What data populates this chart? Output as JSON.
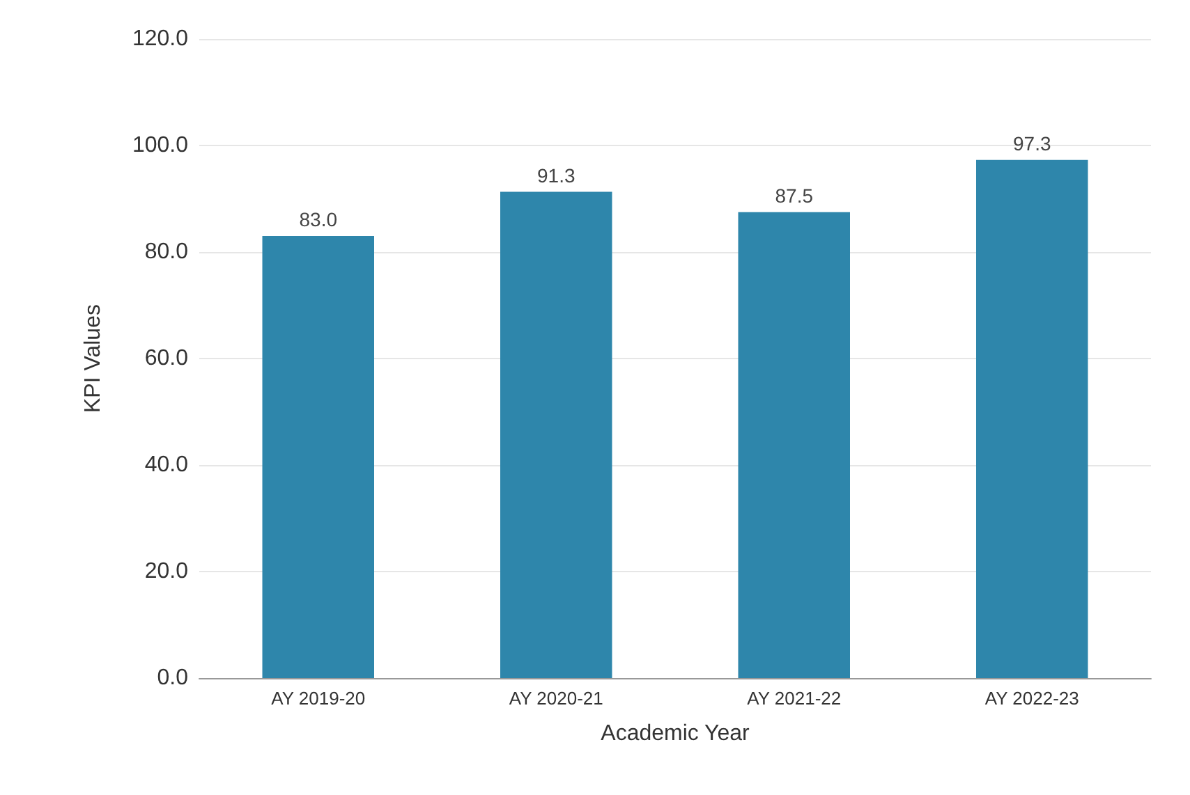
{
  "chart_data": {
    "type": "bar",
    "xlabel": "Academic Year",
    "ylabel": "KPI Values",
    "categories": [
      "AY 2019-20",
      "AY 2020-21",
      "AY 2021-22",
      "AY 2022-23"
    ],
    "values": [
      83.0,
      91.3,
      87.5,
      97.3
    ],
    "value_labels": [
      "83.0",
      "91.3",
      "87.5",
      "97.3"
    ],
    "color": "#2e86ab",
    "ylim": [
      0,
      120
    ],
    "yticks": [
      {
        "value": 0,
        "label": "0.0"
      },
      {
        "value": 20,
        "label": "20.0"
      },
      {
        "value": 40,
        "label": "40.0"
      },
      {
        "value": 60,
        "label": "60.0"
      },
      {
        "value": 80,
        "label": "80.0"
      },
      {
        "value": 100,
        "label": "100.0"
      },
      {
        "value": 120,
        "label": "120.0"
      }
    ],
    "grid": "y"
  }
}
